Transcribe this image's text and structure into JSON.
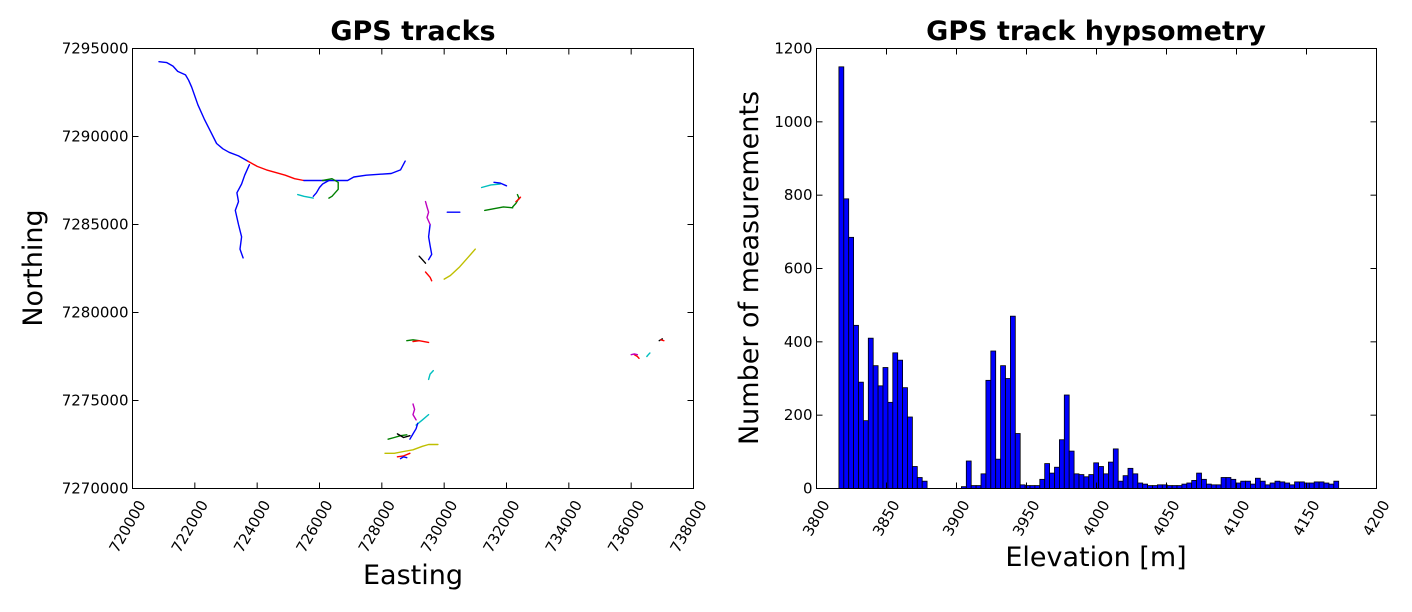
{
  "chart_data": [
    {
      "type": "line",
      "title": "GPS tracks",
      "xlabel": "Easting",
      "ylabel": "Northing",
      "xlim": [
        720000,
        738000
      ],
      "ylim": [
        7270000,
        7295000
      ],
      "xticks": [
        720000,
        722000,
        724000,
        726000,
        728000,
        730000,
        732000,
        734000,
        736000,
        738000
      ],
      "yticks": [
        7270000,
        7275000,
        7280000,
        7285000,
        7290000,
        7295000
      ],
      "xtick_labels": [
        "720000",
        "722000",
        "724000",
        "726000",
        "728000",
        "730000",
        "732000",
        "734000",
        "736000",
        "738000"
      ],
      "ytick_labels": [
        "7270000",
        "7275000",
        "7280000",
        "7285000",
        "7290000",
        "7295000"
      ],
      "grid": false,
      "series": [
        {
          "color": "#0000ff",
          "x": [
            720850,
            721100,
            721300,
            721450,
            721700,
            721800,
            721900,
            722000,
            722100,
            722300,
            722500,
            722700,
            722900,
            723100,
            723400,
            723700
          ],
          "y": [
            7294250,
            7294200,
            7294000,
            7293700,
            7293500,
            7293200,
            7292800,
            7292300,
            7291800,
            7291000,
            7290300,
            7289600,
            7289300,
            7289100,
            7288900,
            7288600
          ]
        },
        {
          "color": "#ff0000",
          "x": [
            723700,
            724000,
            724300,
            724600,
            724900,
            725200,
            725500
          ],
          "y": [
            7288600,
            7288300,
            7288100,
            7287950,
            7287800,
            7287600,
            7287500
          ]
        },
        {
          "color": "#0000ff",
          "x": [
            723750,
            723600,
            723500,
            723350,
            723400,
            723300,
            723400,
            723500,
            723450,
            723550
          ],
          "y": [
            7288400,
            7287800,
            7287300,
            7286800,
            7286300,
            7285800,
            7285000,
            7284300,
            7283600,
            7283100
          ]
        },
        {
          "color": "#0000ff",
          "x": [
            725500,
            726000,
            726500,
            726900,
            727100,
            727500,
            727900,
            728300,
            728600,
            728750
          ],
          "y": [
            7287500,
            7287500,
            7287500,
            7287500,
            7287700,
            7287800,
            7287850,
            7287900,
            7288100,
            7288600
          ]
        },
        {
          "color": "#0000ff",
          "x": [
            725800,
            725900,
            726000,
            726100,
            726300
          ],
          "y": [
            7286600,
            7286800,
            7287100,
            7287300,
            7287500
          ]
        },
        {
          "color": "#008000",
          "x": [
            726100,
            726400,
            726600,
            726600,
            726400,
            726300
          ],
          "y": [
            7287500,
            7287600,
            7287400,
            7287000,
            7286600,
            7286500
          ]
        },
        {
          "color": "#00bfbf",
          "x": [
            725300,
            725500,
            725800
          ],
          "y": [
            7286700,
            7286600,
            7286500
          ]
        },
        {
          "color": "#bfbf00",
          "x": [
            730000,
            730200,
            730500,
            730800,
            731000
          ],
          "y": [
            7281900,
            7282100,
            7282600,
            7283200,
            7283600
          ]
        },
        {
          "color": "#0000ff",
          "x": [
            729550,
            729500,
            729550,
            729600,
            729500
          ],
          "y": [
            7285000,
            7284300,
            7283800,
            7283300,
            7283000
          ]
        },
        {
          "color": "#bf00bf",
          "x": [
            729400,
            729450,
            729500,
            729450,
            729550
          ],
          "y": [
            7286300,
            7286000,
            7285700,
            7285400,
            7285000
          ]
        },
        {
          "color": "#008000",
          "x": [
            731300,
            731600,
            731900,
            732200
          ],
          "y": [
            7285800,
            7285900,
            7286000,
            7285950
          ]
        },
        {
          "color": "#0000ff",
          "x": [
            730100,
            730300,
            730500
          ],
          "y": [
            7285700,
            7285700,
            7285700
          ]
        },
        {
          "color": "#00bfbf",
          "x": [
            731200,
            731500,
            731800
          ],
          "y": [
            7287100,
            7287250,
            7287300
          ]
        },
        {
          "color": "#0000ff",
          "x": [
            731600,
            731800,
            732000
          ],
          "y": [
            7287400,
            7287350,
            7287200
          ]
        },
        {
          "color": "#008000",
          "x": [
            732200,
            732300,
            732400,
            732350
          ],
          "y": [
            7286000,
            7286200,
            7286500,
            7286700
          ]
        },
        {
          "color": "#ff0000",
          "x": [
            732300,
            732400,
            732450
          ],
          "y": [
            7286300,
            7286450,
            7286550
          ]
        },
        {
          "color": "#ff0000",
          "x": [
            729400,
            729550,
            729600
          ],
          "y": [
            7282300,
            7282000,
            7281800
          ]
        },
        {
          "color": "#000000",
          "x": [
            729200,
            729300,
            729400
          ],
          "y": [
            7283200,
            7283000,
            7282800
          ]
        },
        {
          "color": "#008000",
          "x": [
            728800,
            729000,
            729200
          ],
          "y": [
            7278400,
            7278450,
            7278400
          ]
        },
        {
          "color": "#ff0000",
          "x": [
            729000,
            729200,
            729500
          ],
          "y": [
            7278350,
            7278400,
            7278300
          ]
        },
        {
          "color": "#00bfbf",
          "x": [
            729500,
            729550,
            729650
          ],
          "y": [
            7276200,
            7276500,
            7276700
          ]
        },
        {
          "color": "#00bfbf",
          "x": [
            729100,
            729300,
            729500
          ],
          "y": [
            7273600,
            7273900,
            7274200
          ]
        },
        {
          "color": "#bf00bf",
          "x": [
            729000,
            729050,
            729000,
            729100
          ],
          "y": [
            7274800,
            7274500,
            7274200,
            7273900
          ]
        },
        {
          "color": "#0000ff",
          "x": [
            728900,
            729000,
            729100,
            729150
          ],
          "y": [
            7272800,
            7273100,
            7273400,
            7273700
          ]
        },
        {
          "color": "#008000",
          "x": [
            728200,
            728400,
            728600,
            728800
          ],
          "y": [
            7272800,
            7272900,
            7273000,
            7273050
          ]
        },
        {
          "color": "#000000",
          "x": [
            728500,
            728700,
            728900
          ],
          "y": [
            7273100,
            7272900,
            7273000
          ]
        },
        {
          "color": "#bfbf00",
          "x": [
            728100,
            728400,
            728700,
            729000,
            729300,
            729500,
            729800
          ],
          "y": [
            7272000,
            7272000,
            7272100,
            7272200,
            7272400,
            7272500,
            7272500
          ]
        },
        {
          "color": "#ff0000",
          "x": [
            728500,
            728700,
            728900
          ],
          "y": [
            7271800,
            7271850,
            7272000
          ]
        },
        {
          "color": "#0000ff",
          "x": [
            728600,
            728700,
            728800
          ],
          "y": [
            7271700,
            7271800,
            7271750
          ]
        },
        {
          "color": "#00bfbf",
          "x": [
            736500,
            736550,
            736600
          ],
          "y": [
            7277500,
            7277600,
            7277700
          ]
        },
        {
          "color": "#ff0000",
          "x": [
            736100,
            736200,
            736250
          ],
          "y": [
            7277600,
            7277500,
            7277400
          ]
        },
        {
          "color": "#bf00bf",
          "x": [
            736000,
            736100,
            736200
          ],
          "y": [
            7277600,
            7277650,
            7277600
          ]
        },
        {
          "color": "#000000",
          "x": [
            736900,
            737000
          ],
          "y": [
            7278400,
            7278500
          ]
        },
        {
          "color": "#ff0000",
          "x": [
            736950,
            737050
          ],
          "y": [
            7278450,
            7278400
          ]
        }
      ]
    },
    {
      "type": "bar",
      "title": "GPS track hypsometry",
      "xlabel": "Elevation [m]",
      "ylabel": "Number of measurements",
      "xlim": [
        3800,
        4200
      ],
      "ylim": [
        0,
        1200
      ],
      "xticks": [
        3800,
        3850,
        3900,
        3950,
        4000,
        4050,
        4100,
        4150,
        4200
      ],
      "yticks": [
        0,
        200,
        400,
        600,
        800,
        1000,
        1200
      ],
      "xtick_labels": [
        "3800",
        "3850",
        "3900",
        "3950",
        "4000",
        "4050",
        "4100",
        "4150",
        "4200"
      ],
      "ytick_labels": [
        "0",
        "200",
        "400",
        "600",
        "800",
        "1000",
        "1200"
      ],
      "grid": false,
      "bin_start": 3816,
      "bin_width": 3.5,
      "color": "#0000ff",
      "values": [
        1150,
        790,
        685,
        445,
        290,
        185,
        410,
        335,
        280,
        330,
        235,
        370,
        350,
        275,
        195,
        60,
        30,
        20,
        0,
        0,
        0,
        0,
        0,
        0,
        0,
        5,
        75,
        8,
        8,
        40,
        295,
        375,
        80,
        335,
        300,
        470,
        150,
        10,
        8,
        8,
        8,
        25,
        68,
        42,
        58,
        133,
        255,
        102,
        40,
        38,
        32,
        38,
        70,
        60,
        40,
        72,
        108,
        20,
        35,
        55,
        40,
        15,
        12,
        8,
        8,
        10,
        10,
        8,
        8,
        8,
        12,
        15,
        22,
        42,
        25,
        12,
        10,
        10,
        30,
        30,
        25,
        15,
        20,
        20,
        12,
        28,
        20,
        10,
        15,
        20,
        18,
        15,
        10,
        18,
        18,
        15,
        15,
        18,
        18,
        15,
        12,
        20
      ]
    }
  ]
}
